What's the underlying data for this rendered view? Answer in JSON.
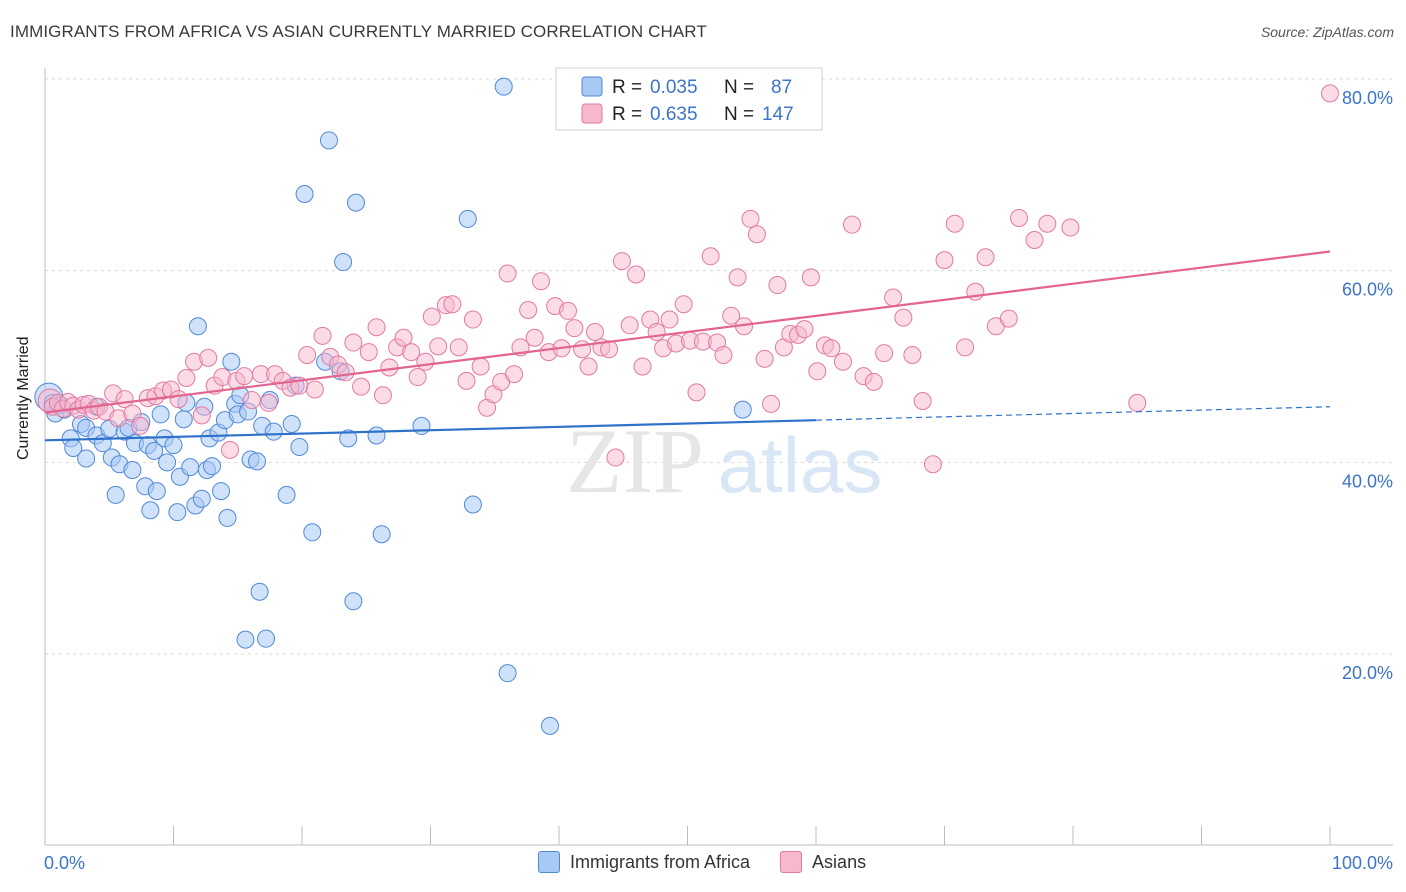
{
  "title": "IMMIGRANTS FROM AFRICA VS ASIAN CURRENTLY MARRIED CORRELATION CHART",
  "source": "Source: ZipAtlas.com",
  "watermark": {
    "zip": "ZIP",
    "atlas": "atlas"
  },
  "colors": {
    "africa_fill": "#a9c9f5",
    "africa_stroke": "#4f8ad6",
    "africa_line": "#2f72c9",
    "asian_fill": "#f6b8ce",
    "asian_stroke": "#e27aa1",
    "asian_line": "#e2648f",
    "axis_text": "#3b74c8",
    "grid": "#d8d8d8"
  },
  "legend_top": {
    "africa": {
      "r_label": "R =",
      "r_value": "0.035",
      "n_label": "N =",
      "n_value": "87"
    },
    "asian": {
      "r_label": "R =",
      "r_value": "0.635",
      "n_label": "N =",
      "n_value": "147"
    }
  },
  "legend_bottom": {
    "africa": "Immigrants from Africa",
    "asian": "Asians"
  },
  "chart_data": {
    "type": "scatter",
    "title": "IMMIGRANTS FROM AFRICA VS ASIAN CURRENTLY MARRIED CORRELATION CHART",
    "xlabel": "",
    "ylabel": "Currently Married",
    "xlim": [
      0,
      100
    ],
    "ylim": [
      0,
      84
    ],
    "x_tick_labels": [
      "0.0%",
      "100.0%"
    ],
    "y_ticks": [
      20,
      40,
      60,
      80
    ],
    "y_tick_labels": [
      "20.0%",
      "40.0%",
      "60.0%",
      "80.0%"
    ],
    "grid": true,
    "series": [
      {
        "name": "Immigrants from Africa",
        "R": 0.035,
        "N": 87,
        "trend": {
          "x0": 0,
          "y0": 42.3,
          "x1": 60,
          "y1": 44.4,
          "dashed_to_x": 100,
          "dashed_to_y": 45.8
        },
        "points": [
          [
            0.3,
            46.8
          ],
          [
            0.6,
            46.2
          ],
          [
            0.8,
            45.1
          ],
          [
            1.2,
            46.0
          ],
          [
            1.5,
            45.5
          ],
          [
            2.0,
            42.5
          ],
          [
            2.2,
            41.5
          ],
          [
            2.8,
            44.0
          ],
          [
            3.2,
            43.6
          ],
          [
            3.2,
            40.4
          ],
          [
            4.0,
            45.8
          ],
          [
            4.0,
            42.8
          ],
          [
            4.5,
            42.0
          ],
          [
            5.0,
            43.5
          ],
          [
            5.2,
            40.5
          ],
          [
            5.5,
            36.6
          ],
          [
            5.8,
            39.8
          ],
          [
            6.2,
            43.2
          ],
          [
            6.5,
            43.6
          ],
          [
            6.8,
            39.2
          ],
          [
            7.0,
            42.0
          ],
          [
            7.5,
            44.2
          ],
          [
            7.8,
            37.5
          ],
          [
            8.0,
            41.8
          ],
          [
            8.2,
            35.0
          ],
          [
            8.5,
            41.2
          ],
          [
            8.7,
            37.0
          ],
          [
            9.0,
            45.0
          ],
          [
            9.3,
            42.5
          ],
          [
            9.5,
            40.0
          ],
          [
            10.0,
            41.8
          ],
          [
            10.3,
            34.8
          ],
          [
            10.5,
            38.5
          ],
          [
            10.8,
            44.5
          ],
          [
            11.0,
            46.2
          ],
          [
            11.3,
            39.5
          ],
          [
            11.7,
            35.5
          ],
          [
            11.9,
            54.2
          ],
          [
            12.2,
            36.2
          ],
          [
            12.4,
            45.8
          ],
          [
            12.6,
            39.2
          ],
          [
            12.8,
            42.5
          ],
          [
            13.0,
            39.6
          ],
          [
            13.5,
            43.1
          ],
          [
            13.7,
            37.0
          ],
          [
            14.0,
            44.4
          ],
          [
            14.2,
            34.2
          ],
          [
            14.5,
            50.5
          ],
          [
            14.8,
            46.1
          ],
          [
            15.0,
            45.0
          ],
          [
            15.2,
            47.0
          ],
          [
            15.6,
            21.5
          ],
          [
            15.8,
            45.3
          ],
          [
            16.0,
            40.3
          ],
          [
            16.5,
            40.1
          ],
          [
            16.7,
            26.5
          ],
          [
            16.9,
            43.8
          ],
          [
            17.2,
            21.6
          ],
          [
            17.5,
            46.5
          ],
          [
            17.8,
            43.2
          ],
          [
            18.8,
            36.6
          ],
          [
            19.2,
            44.0
          ],
          [
            19.5,
            48.0
          ],
          [
            19.8,
            41.6
          ],
          [
            20.2,
            68.0
          ],
          [
            20.8,
            32.7
          ],
          [
            21.8,
            50.5
          ],
          [
            22.1,
            73.6
          ],
          [
            23.0,
            49.5
          ],
          [
            23.2,
            60.9
          ],
          [
            23.6,
            42.5
          ],
          [
            24.0,
            25.5
          ],
          [
            24.2,
            67.1
          ],
          [
            25.8,
            42.8
          ],
          [
            26.2,
            32.5
          ],
          [
            29.3,
            43.8
          ],
          [
            32.9,
            65.4
          ],
          [
            33.3,
            35.6
          ],
          [
            35.7,
            79.2
          ],
          [
            36.0,
            18.0
          ],
          [
            39.3,
            12.5
          ],
          [
            54.3,
            45.5
          ]
        ]
      },
      {
        "name": "Asians",
        "R": 0.635,
        "N": 147,
        "trend": {
          "x0": 0,
          "y0": 45.2,
          "x1": 100,
          "y1": 62.0
        },
        "points": [
          [
            0.4,
            46.4
          ],
          [
            0.6,
            45.8
          ],
          [
            1.0,
            46.2
          ],
          [
            1.4,
            45.6
          ],
          [
            1.8,
            46.3
          ],
          [
            2.2,
            45.9
          ],
          [
            2.6,
            45.5
          ],
          [
            3.0,
            46.0
          ],
          [
            3.4,
            46.1
          ],
          [
            3.8,
            45.4
          ],
          [
            4.2,
            45.8
          ],
          [
            4.7,
            45.3
          ],
          [
            5.3,
            47.2
          ],
          [
            5.7,
            44.6
          ],
          [
            6.2,
            46.6
          ],
          [
            6.8,
            45.1
          ],
          [
            7.4,
            43.8
          ],
          [
            8.0,
            46.7
          ],
          [
            8.6,
            46.9
          ],
          [
            9.2,
            47.5
          ],
          [
            9.8,
            47.6
          ],
          [
            10.4,
            46.6
          ],
          [
            11.0,
            48.8
          ],
          [
            11.6,
            50.5
          ],
          [
            12.2,
            44.9
          ],
          [
            12.7,
            50.9
          ],
          [
            13.2,
            48.0
          ],
          [
            13.8,
            48.9
          ],
          [
            14.4,
            41.3
          ],
          [
            14.9,
            48.5
          ],
          [
            15.5,
            49.0
          ],
          [
            16.1,
            46.5
          ],
          [
            16.8,
            49.2
          ],
          [
            17.4,
            46.2
          ],
          [
            17.9,
            49.2
          ],
          [
            18.5,
            48.5
          ],
          [
            19.1,
            47.8
          ],
          [
            19.8,
            48.0
          ],
          [
            20.4,
            51.2
          ],
          [
            21.0,
            47.6
          ],
          [
            21.6,
            53.2
          ],
          [
            22.2,
            51.0
          ],
          [
            22.8,
            50.2
          ],
          [
            23.4,
            49.4
          ],
          [
            24.0,
            52.5
          ],
          [
            24.6,
            47.9
          ],
          [
            25.2,
            51.5
          ],
          [
            25.8,
            54.1
          ],
          [
            26.3,
            47.0
          ],
          [
            26.8,
            49.9
          ],
          [
            27.4,
            52.0
          ],
          [
            27.9,
            53.0
          ],
          [
            28.5,
            51.5
          ],
          [
            29.0,
            48.9
          ],
          [
            29.6,
            50.5
          ],
          [
            30.1,
            55.2
          ],
          [
            30.6,
            52.1
          ],
          [
            31.2,
            56.4
          ],
          [
            31.7,
            56.5
          ],
          [
            32.2,
            52.0
          ],
          [
            32.8,
            48.5
          ],
          [
            33.3,
            54.9
          ],
          [
            33.9,
            50.0
          ],
          [
            34.4,
            45.7
          ],
          [
            34.9,
            47.1
          ],
          [
            35.5,
            48.4
          ],
          [
            36.0,
            59.7
          ],
          [
            36.5,
            49.2
          ],
          [
            37.0,
            52.0
          ],
          [
            37.6,
            55.9
          ],
          [
            38.1,
            53.0
          ],
          [
            38.6,
            58.9
          ],
          [
            39.2,
            51.5
          ],
          [
            39.7,
            56.3
          ],
          [
            40.2,
            51.9
          ],
          [
            40.7,
            55.8
          ],
          [
            41.2,
            54.0
          ],
          [
            41.8,
            51.8
          ],
          [
            42.3,
            50.0
          ],
          [
            42.8,
            53.6
          ],
          [
            43.3,
            52.0
          ],
          [
            43.9,
            51.8
          ],
          [
            44.4,
            40.5
          ],
          [
            44.9,
            61.0
          ],
          [
            45.5,
            54.3
          ],
          [
            46.0,
            59.6
          ],
          [
            46.5,
            50.0
          ],
          [
            47.1,
            54.9
          ],
          [
            47.6,
            53.6
          ],
          [
            48.1,
            51.9
          ],
          [
            48.6,
            54.9
          ],
          [
            49.1,
            52.4
          ],
          [
            49.7,
            56.5
          ],
          [
            50.2,
            52.7
          ],
          [
            50.7,
            47.3
          ],
          [
            51.2,
            52.6
          ],
          [
            51.8,
            61.5
          ],
          [
            52.3,
            52.5
          ],
          [
            52.8,
            51.2
          ],
          [
            53.4,
            55.3
          ],
          [
            53.9,
            59.3
          ],
          [
            54.4,
            54.2
          ],
          [
            54.9,
            65.4
          ],
          [
            55.4,
            63.8
          ],
          [
            56.0,
            50.8
          ],
          [
            56.5,
            46.1
          ],
          [
            57.0,
            58.5
          ],
          [
            57.5,
            52.0
          ],
          [
            58.0,
            53.4
          ],
          [
            58.6,
            53.3
          ],
          [
            59.1,
            53.9
          ],
          [
            59.6,
            59.3
          ],
          [
            60.1,
            49.5
          ],
          [
            60.7,
            52.2
          ],
          [
            61.2,
            51.9
          ],
          [
            62.1,
            50.5
          ],
          [
            62.8,
            64.8
          ],
          [
            63.7,
            49.0
          ],
          [
            64.5,
            48.4
          ],
          [
            65.3,
            51.4
          ],
          [
            66.0,
            57.2
          ],
          [
            66.8,
            55.1
          ],
          [
            67.5,
            51.2
          ],
          [
            68.3,
            46.4
          ],
          [
            69.1,
            39.8
          ],
          [
            70.0,
            61.1
          ],
          [
            70.8,
            64.9
          ],
          [
            71.6,
            52.0
          ],
          [
            72.4,
            57.8
          ],
          [
            73.2,
            61.4
          ],
          [
            74.0,
            54.2
          ],
          [
            75.0,
            55.0
          ],
          [
            75.8,
            65.5
          ],
          [
            77.0,
            63.2
          ],
          [
            78.0,
            64.9
          ],
          [
            79.8,
            64.5
          ],
          [
            85.0,
            46.2
          ],
          [
            100.0,
            78.5
          ]
        ]
      }
    ]
  }
}
